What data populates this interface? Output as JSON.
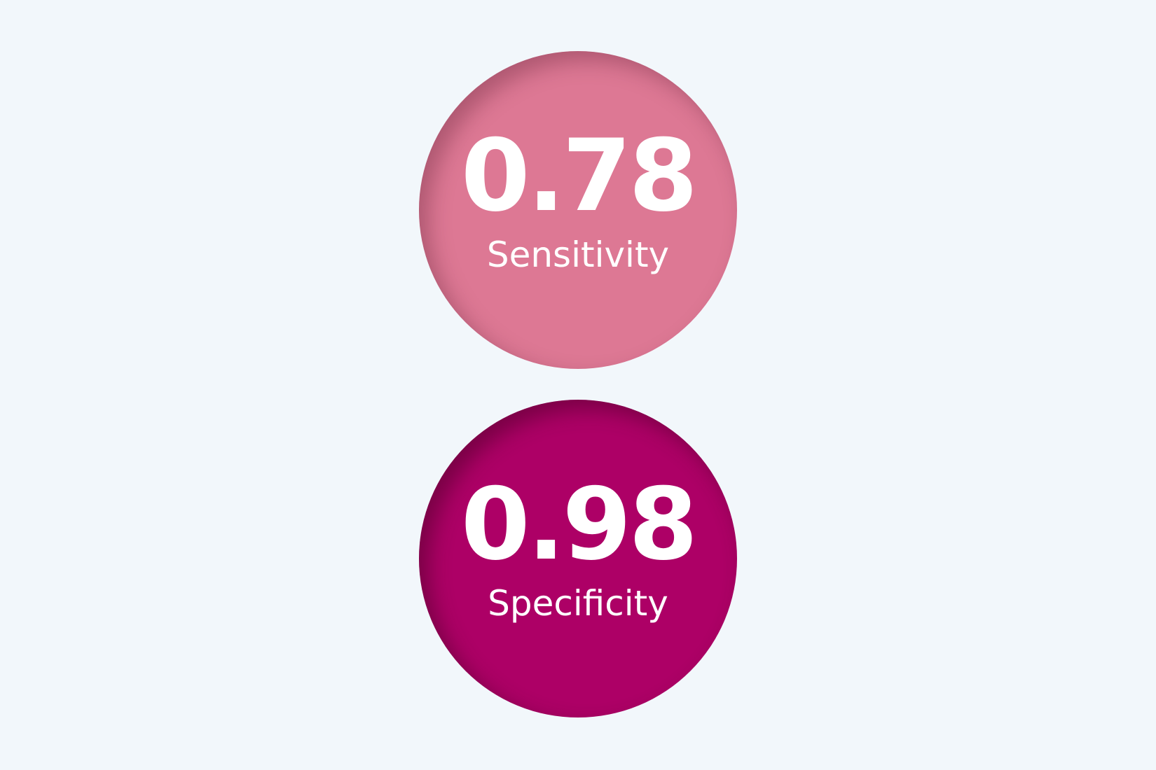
{
  "metrics": [
    {
      "value": "0.78",
      "label": "Sensitivity",
      "color": "#dd7894"
    },
    {
      "value": "0.98",
      "label": "Specificity",
      "color": "#ad0066"
    }
  ],
  "background": "#f2f7fb"
}
